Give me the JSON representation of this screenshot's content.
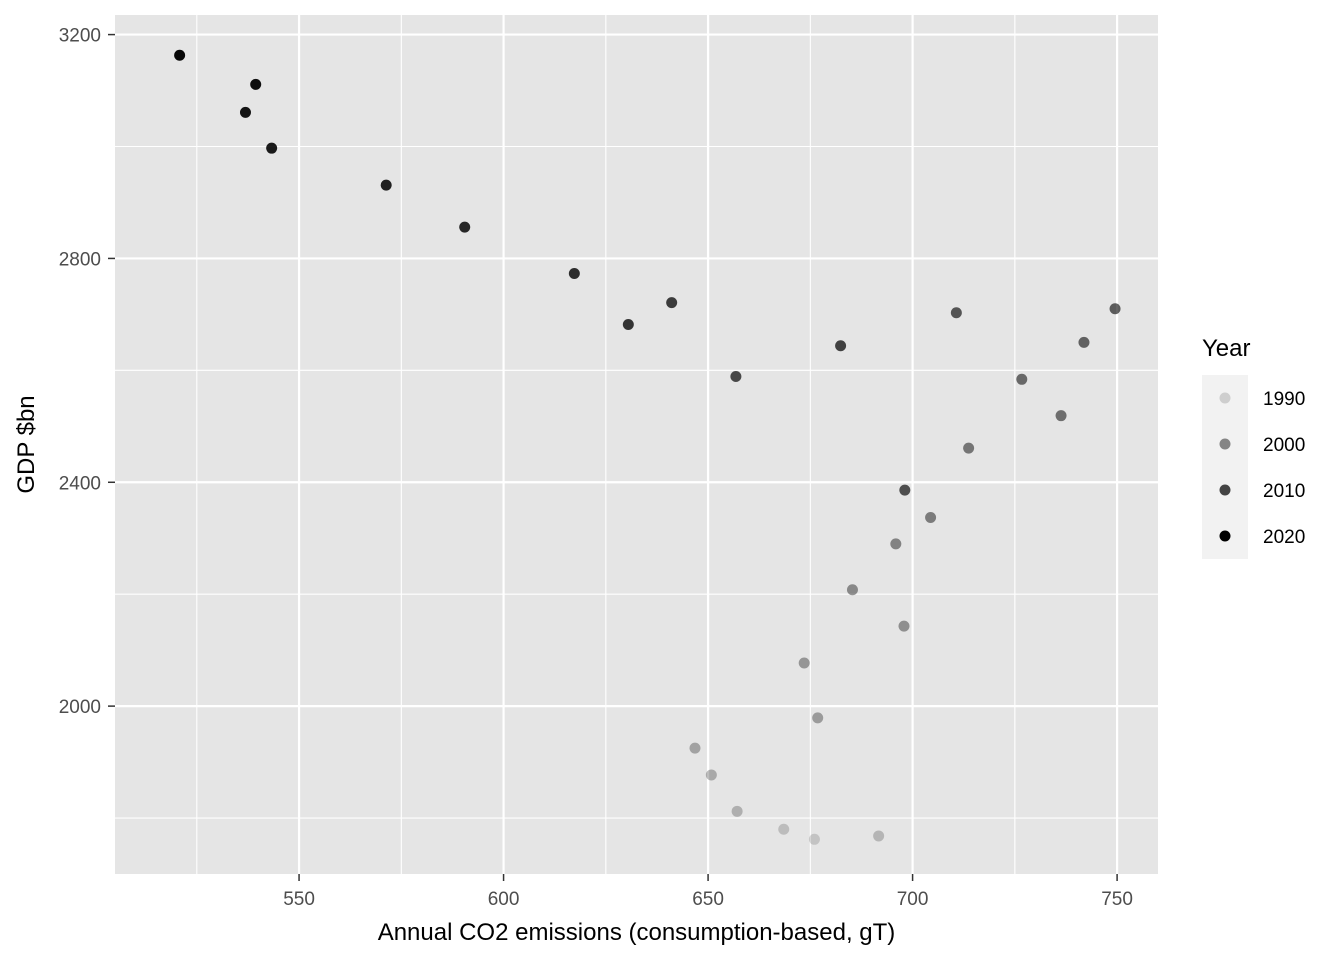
{
  "chart_data": {
    "type": "scatter",
    "title": "",
    "xlabel": "Annual CO2 emissions (consumption-based, gT)",
    "ylabel": "GDP $bn",
    "xlim": [
      505,
      760
    ],
    "ylim": [
      1700,
      3235
    ],
    "x_ticks": [
      550,
      600,
      650,
      700,
      750
    ],
    "x_tick_labels": [
      "550",
      "600",
      "650",
      "700",
      "750"
    ],
    "x_minor_ticks": [
      525,
      575,
      625,
      675,
      725
    ],
    "y_ticks": [
      2000,
      2400,
      2800,
      3200
    ],
    "y_tick_labels": [
      "2000",
      "2400",
      "2800",
      "3200"
    ],
    "y_minor_ticks": [
      1800,
      2200,
      2600,
      3000
    ],
    "grid": true,
    "legend": {
      "title": "Year",
      "placement": "right",
      "entries": [
        {
          "label": "1990",
          "alpha": 0.15
        },
        {
          "label": "2000",
          "alpha": 0.45
        },
        {
          "label": "2010",
          "alpha": 0.72
        },
        {
          "label": "2020",
          "alpha": 1.0
        }
      ]
    },
    "colors": {
      "panel_background": "#e5e5e5",
      "grid_line": "#ffffff",
      "point": "#000000",
      "legend_key_background": "#f2f2f2"
    },
    "year_range": [
      1990,
      2020
    ],
    "points": [
      {
        "year": 1990,
        "x": 676.0,
        "y": 1762
      },
      {
        "year": 1991,
        "x": 668.5,
        "y": 1780
      },
      {
        "year": 1992,
        "x": 691.7,
        "y": 1768
      },
      {
        "year": 1993,
        "x": 657.1,
        "y": 1812
      },
      {
        "year": 1994,
        "x": 650.8,
        "y": 1877
      },
      {
        "year": 1995,
        "x": 646.8,
        "y": 1925
      },
      {
        "year": 1996,
        "x": 676.8,
        "y": 1979
      },
      {
        "year": 1997,
        "x": 673.5,
        "y": 2077
      },
      {
        "year": 1998,
        "x": 697.9,
        "y": 2143
      },
      {
        "year": 1999,
        "x": 685.3,
        "y": 2208
      },
      {
        "year": 2000,
        "x": 695.9,
        "y": 2290
      },
      {
        "year": 2001,
        "x": 704.4,
        "y": 2337
      },
      {
        "year": 2002,
        "x": 713.7,
        "y": 2461
      },
      {
        "year": 2003,
        "x": 736.3,
        "y": 2519
      },
      {
        "year": 2004,
        "x": 726.7,
        "y": 2584
      },
      {
        "year": 2005,
        "x": 741.9,
        "y": 2650
      },
      {
        "year": 2006,
        "x": 749.5,
        "y": 2710
      },
      {
        "year": 2007,
        "x": 710.7,
        "y": 2703
      },
      {
        "year": 2008,
        "x": 698.1,
        "y": 2386
      },
      {
        "year": 2009,
        "x": 656.8,
        "y": 2589
      },
      {
        "year": 2010,
        "x": 682.4,
        "y": 2644
      },
      {
        "year": 2011,
        "x": 641.1,
        "y": 2721
      },
      {
        "year": 2012,
        "x": 630.5,
        "y": 2682
      },
      {
        "year": 2013,
        "x": 617.3,
        "y": 2773
      },
      {
        "year": 2014,
        "x": 590.5,
        "y": 2856
      },
      {
        "year": 2015,
        "x": 571.3,
        "y": 2931
      },
      {
        "year": 2016,
        "x": 543.3,
        "y": 2997
      },
      {
        "year": 2017,
        "x": 536.9,
        "y": 3061
      },
      {
        "year": 2018,
        "x": 539.4,
        "y": 3111
      },
      {
        "year": 2019,
        "x": 520.8,
        "y": 3163
      }
    ]
  }
}
